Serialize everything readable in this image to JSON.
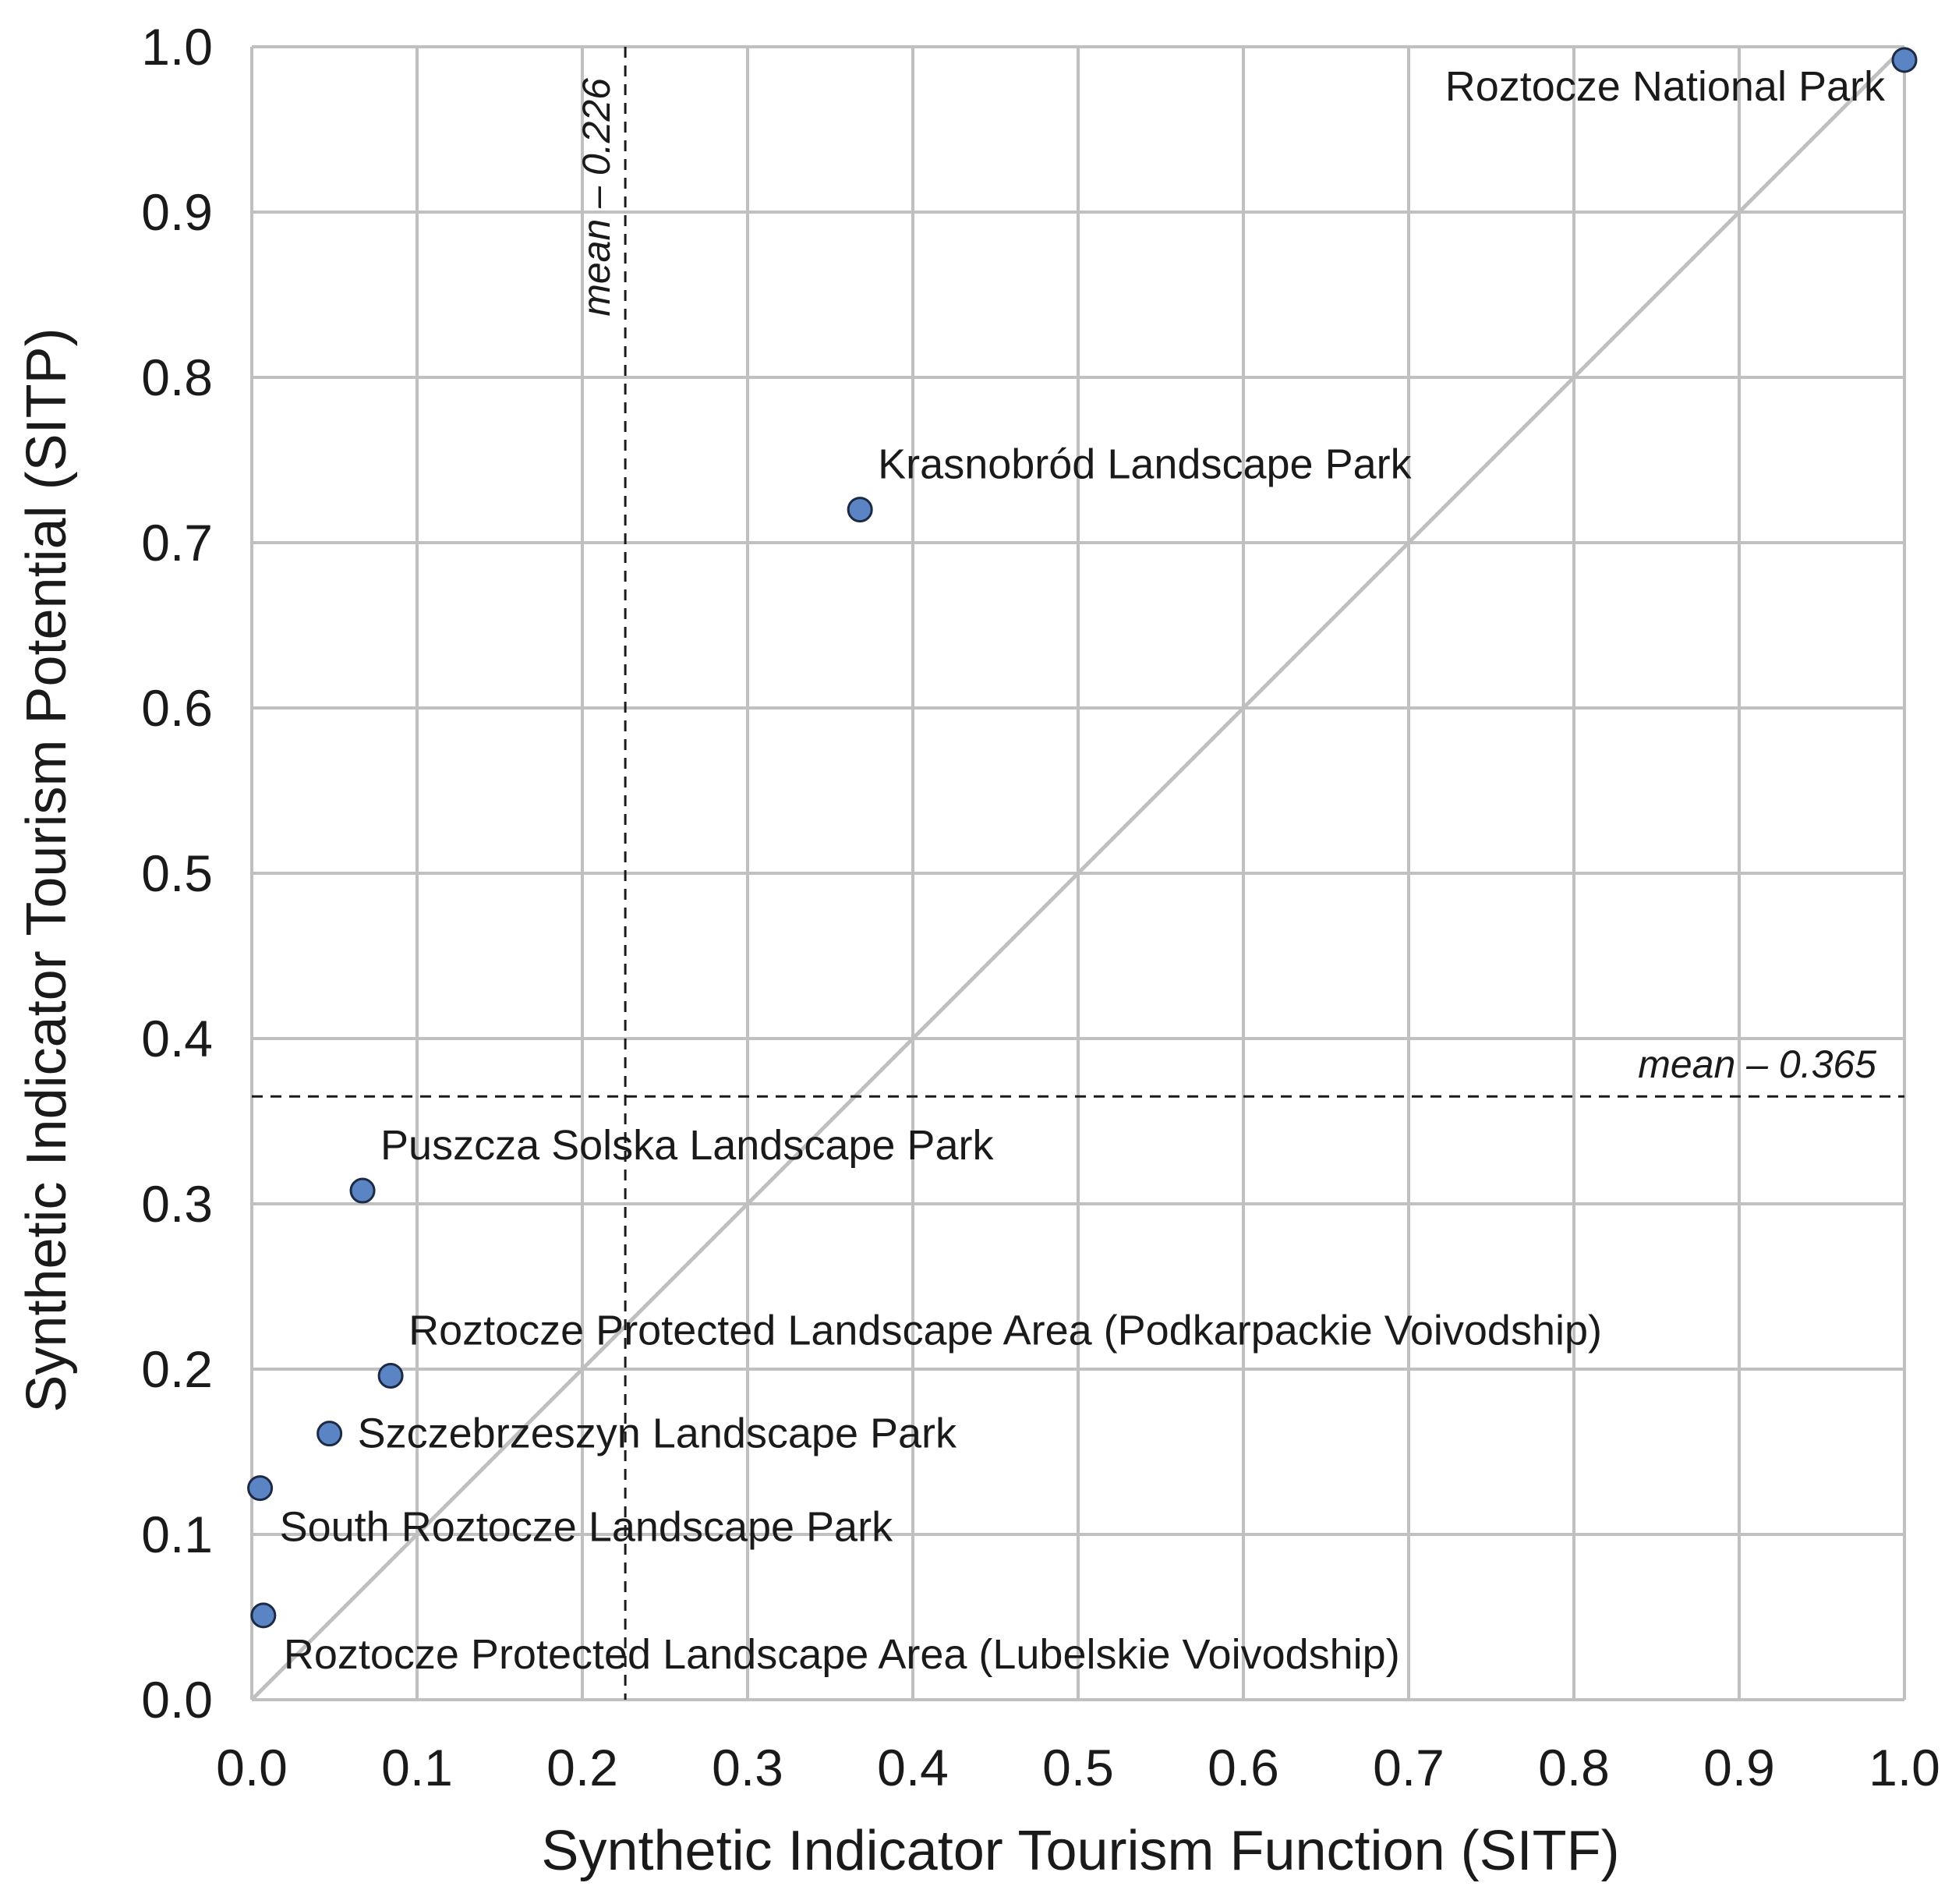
{
  "chart_data": {
    "type": "scatter",
    "xlabel": "Synthetic Indicator Tourism Function (SITF)",
    "ylabel": "Synthetic Indicator Tourism Potential (SITP)",
    "xlim": [
      0.0,
      1.0
    ],
    "ylim": [
      0.0,
      1.0
    ],
    "x_ticks": [
      "0.0",
      "0.1",
      "0.2",
      "0.3",
      "0.4",
      "0.5",
      "0.6",
      "0.7",
      "0.8",
      "0.9",
      "1.0"
    ],
    "y_ticks": [
      "0.0",
      "0.1",
      "0.2",
      "0.3",
      "0.4",
      "0.5",
      "0.6",
      "0.7",
      "0.8",
      "0.9",
      "1.0"
    ],
    "grid": true,
    "diagonal_reference_line": true,
    "point_color": "#5b84c4",
    "grid_color": "#c0c0c0",
    "mean_lines": [
      {
        "axis": "x",
        "value": 0.226,
        "label": "mean – 0.226"
      },
      {
        "axis": "y",
        "value": 0.365,
        "label": "mean – 0.365"
      }
    ],
    "points": [
      {
        "label": "Roztocze National Park",
        "x": 1.0,
        "y": 0.992
      },
      {
        "label": "Krasnobród Landscape Park",
        "x": 0.368,
        "y": 0.72
      },
      {
        "label": "Puszcza Solska Landscape Park",
        "x": 0.067,
        "y": 0.308
      },
      {
        "label": "Roztocze Protected Landscape Area (Podkarpackie Voivodship)",
        "x": 0.084,
        "y": 0.196
      },
      {
        "label": "Szczebrzeszyn Landscape Park",
        "x": 0.047,
        "y": 0.161
      },
      {
        "label": "South Roztocze Landscape Park",
        "x": 0.005,
        "y": 0.128
      },
      {
        "label": "Roztocze Protected Landscape Area (Lubelskie Voivodship)",
        "x": 0.007,
        "y": 0.051
      }
    ]
  }
}
